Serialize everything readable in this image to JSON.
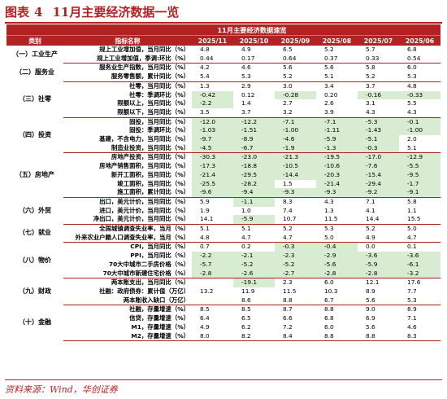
{
  "figure": {
    "label": "图表",
    "number": "4",
    "title": "11月主要经济数据一览"
  },
  "table": {
    "caption": "11月主要经济数据速览",
    "headers": [
      "类别",
      "指标名称",
      "2025/11",
      "2025/10",
      "2025/09",
      "2025/08",
      "2025/07",
      "2025/06"
    ],
    "highlight_color": "#d7ecd0",
    "groups": [
      {
        "category": "（一）工业生产",
        "rows": [
          {
            "name": "规上工业增加值，当月同比（%）",
            "values": [
              "4.8",
              "4.9",
              "6.5",
              "5.2",
              "5.7",
              "6.8"
            ],
            "hl": []
          },
          {
            "name": "规上工业增加值，季调:环比（%）",
            "values": [
              "0.44",
              "0.17",
              "0.64",
              "0.37",
              "0.33",
              "0.54"
            ],
            "hl": []
          }
        ]
      },
      {
        "category": "（二）服务业",
        "rows": [
          {
            "name": "服务业生产指数，当月同比（%）",
            "values": [
              "4.2",
              "4.6",
              "5.6",
              "5.6",
              "5.8",
              "6.0"
            ],
            "hl": []
          },
          {
            "name": "服务零售额，累计同比（%）",
            "values": [
              "5.4",
              "5.3",
              "5.2",
              "5.1",
              "5.2",
              "5.3"
            ],
            "hl": []
          }
        ]
      },
      {
        "category": "（三）社零",
        "rows": [
          {
            "name": "社零，当月同比（%）",
            "values": [
              "1.3",
              "2.9",
              "3.0",
              "3.4",
              "3.7",
              "4.8"
            ],
            "hl": []
          },
          {
            "name": "社零：季调环比（%）",
            "values": [
              "-0.42",
              "0.12",
              "-0.28",
              "0.20",
              "-0.16",
              "-0.33"
            ],
            "hl": [
              0,
              2,
              4,
              5
            ]
          },
          {
            "name": "限额以上，当月同比（%）",
            "values": [
              "-2.2",
              "1.4",
              "2.7",
              "2.6",
              "3.1",
              "5.5"
            ],
            "hl": [
              0
            ]
          },
          {
            "name": "限额以下，当月同比（%）",
            "values": [
              "3.5",
              "3.7",
              "3.2",
              "3.9",
              "4.3",
              "4.3"
            ],
            "hl": []
          }
        ]
      },
      {
        "category": "（四）投资",
        "rows": [
          {
            "name": "固投，当月同比（%）",
            "values": [
              "-12.0",
              "-12.2",
              "-7.1",
              "-7.1",
              "-5.3",
              "-0.1"
            ],
            "hl": [
              0,
              1,
              2,
              3,
              4,
              5
            ]
          },
          {
            "name": "固投：季调环比（%）",
            "values": [
              "-1.03",
              "-1.51",
              "-1.00",
              "-1.11",
              "-1.43",
              "-1.00"
            ],
            "hl": [
              0,
              1,
              2,
              3,
              4,
              5
            ]
          },
          {
            "name": "基建，不含电力，当月同比（%）",
            "values": [
              "-9.7",
              "-8.9",
              "-4.6",
              "-5.9",
              "-5.1",
              "2.0"
            ],
            "hl": [
              0,
              1,
              2,
              3,
              4
            ]
          },
          {
            "name": "制造业投资，当月同比（%）",
            "values": [
              "-4.5",
              "-6.7",
              "-1.9",
              "-1.3",
              "-0.3",
              "5.1"
            ],
            "hl": [
              0,
              1,
              2,
              3,
              4
            ]
          }
        ]
      },
      {
        "category": "（五）房地产",
        "rows": [
          {
            "name": "房地产投资，当月同比（%）",
            "values": [
              "-30.3",
              "-23.0",
              "-21.3",
              "-19.5",
              "-17.0",
              "-12.9"
            ],
            "hl": [
              0,
              1,
              2,
              3,
              4,
              5
            ]
          },
          {
            "name": "房地产销售面积，当月同比（%）",
            "values": [
              "-17.3",
              "-18.8",
              "-10.5",
              "-10.6",
              "-7.6",
              "-5.5"
            ],
            "hl": [
              0,
              1,
              2,
              3,
              4,
              5
            ]
          },
          {
            "name": "新开工面积，当月同比（%）",
            "values": [
              "-21.4",
              "-29.5",
              "-14.4",
              "-20.3",
              "-15.4",
              "-9.5"
            ],
            "hl": [
              0,
              1,
              2,
              3,
              4,
              5
            ]
          },
          {
            "name": "竣工面积，当月同比（%）",
            "values": [
              "-25.5",
              "-28.2",
              "1.5",
              "-21.4",
              "-29.4",
              "-1.7"
            ],
            "hl": [
              0,
              1,
              3,
              4,
              5
            ]
          },
          {
            "name": "施工面积，累计同比（%）",
            "values": [
              "-9.6",
              "-9.4",
              "-9.3",
              "-9.3",
              "-9.2",
              "-9.1"
            ],
            "hl": [
              0,
              1,
              2,
              3,
              4,
              5
            ]
          }
        ]
      },
      {
        "category": "（六）外贸",
        "rows": [
          {
            "name": "出口，美元计价，当月同比（%）",
            "values": [
              "5.9",
              "-1.1",
              "8.3",
              "4.3",
              "7.1",
              "5.8"
            ],
            "hl": [
              1
            ]
          },
          {
            "name": "进口，美元计价，当月同比（%）",
            "values": [
              "1.9",
              "1.0",
              "7.4",
              "1.3",
              "4.1",
              "1.1"
            ],
            "hl": []
          },
          {
            "name": "净出口，美元计价，当月同比（%）",
            "values": [
              "14.1",
              "-5.9",
              "10.7",
              "11.5",
              "14.4",
              "15.5"
            ],
            "hl": [
              1
            ]
          }
        ]
      },
      {
        "category": "（七）就业",
        "rows": [
          {
            "name": "全国城镇调查失业率，当月（%）",
            "values": [
              "5.1",
              "5.1",
              "5.2",
              "5.3",
              "5.2",
              "5.0"
            ],
            "hl": []
          },
          {
            "name": "外来农业户籍人口调查失业率，当月（%）",
            "values": [
              "4.8",
              "4.7",
              "4.7",
              "5.0",
              "4.9",
              "4.7"
            ],
            "hl": []
          }
        ]
      },
      {
        "category": "（八）物价",
        "rows": [
          {
            "name": "CPI，当月同比（%）",
            "values": [
              "0.7",
              "0.2",
              "-0.3",
              "-0.4",
              "0.0",
              "0.1"
            ],
            "hl": [
              2,
              3
            ]
          },
          {
            "name": "PPI，当月同比（%）",
            "values": [
              "-2.2",
              "-2.1",
              "-2.3",
              "-2.9",
              "-3.6",
              "-3.6"
            ],
            "hl": [
              0,
              1,
              2,
              3,
              4,
              5
            ]
          },
          {
            "name": "70大中城市二手房价格（%）",
            "values": [
              "-5.7",
              "-5.2",
              "-5.2",
              "-5.6",
              "-5.9",
              "-6.1"
            ],
            "hl": [
              0,
              1,
              2,
              3,
              4,
              5
            ]
          },
          {
            "name": "70大中城市新建住宅价格（%）",
            "values": [
              "-2.8",
              "-2.6",
              "-2.7",
              "-2.8",
              "-2.8",
              "-3.2"
            ],
            "hl": [
              0,
              1,
              2,
              3,
              4,
              5
            ]
          }
        ]
      },
      {
        "category": "（九）财政",
        "rows": [
          {
            "name": "两本账支出，当月同比（%）",
            "values": [
              "",
              "-19.1",
              "2.3",
              "6.0",
              "12.1",
              "17.6"
            ],
            "hl": [
              1
            ]
          },
          {
            "name": "社融：政府债券：累计值（万亿）",
            "values": [
              "13.2",
              "11.9",
              "11.5",
              "10.3",
              "8.9",
              "7.7"
            ],
            "hl": []
          },
          {
            "name": "两本账收入缺口（万亿）",
            "values": [
              "",
              "8.6",
              "8.8",
              "6.7",
              "5.6",
              "5.3"
            ],
            "hl": []
          }
        ]
      },
      {
        "category": "（十）金融",
        "rows": [
          {
            "name": "社融，存量增速（%）",
            "values": [
              "8.5",
              "8.5",
              "8.7",
              "8.8",
              "9.0",
              "8.9"
            ],
            "hl": []
          },
          {
            "name": "信贷，存量增速（%）",
            "values": [
              "6.4",
              "6.5",
              "6.6",
              "6.8",
              "6.9",
              "7.1"
            ],
            "hl": []
          },
          {
            "name": "M1，存量增速（%）",
            "values": [
              "4.9",
              "6.2",
              "7.2",
              "6.0",
              "5.6",
              "4.6"
            ],
            "hl": []
          },
          {
            "name": "M2，存量增速（%）",
            "values": [
              "8.0",
              "8.2",
              "8.4",
              "8.8",
              "8.8",
              "8.3"
            ],
            "hl": []
          }
        ]
      }
    ]
  },
  "source": "资料来源：Wind，华创证券"
}
